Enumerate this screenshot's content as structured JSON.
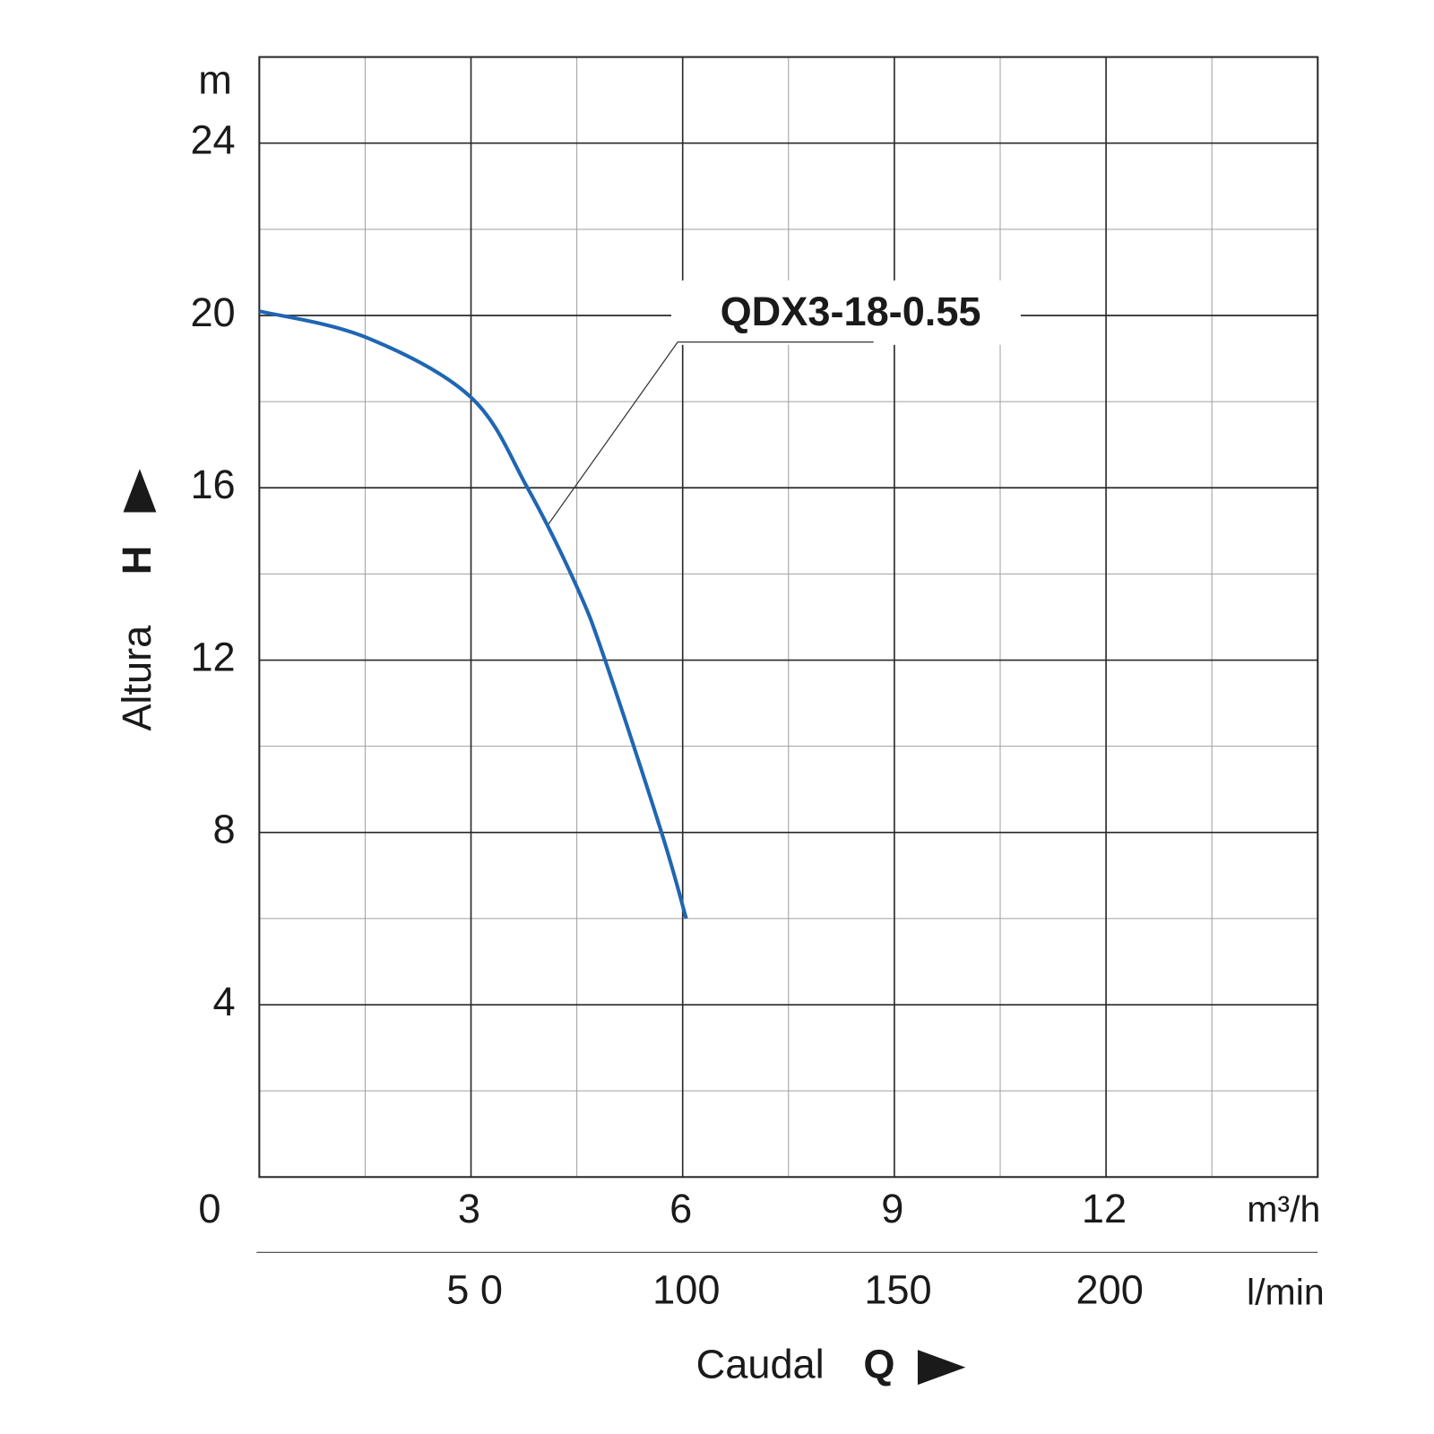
{
  "chart_data": {
    "type": "line",
    "y_unit": "m",
    "x_unit": "m³/h",
    "x2_unit": "l/min",
    "y_label": "Altura",
    "y_symbol": "H",
    "x_label": "Caudal",
    "x_symbol": "Q",
    "annotation": "QDX3-18-0.55",
    "xlim": [
      0,
      15
    ],
    "xticks": [
      0,
      3,
      6,
      9,
      12
    ],
    "xminor": [
      1.5,
      4.5,
      7.5,
      10.5,
      13.5
    ],
    "x2lim": [
      0,
      250
    ],
    "x2ticks": [
      {
        "value": 50,
        "label": "5 0"
      },
      100,
      150,
      200
    ],
    "ylim": [
      0,
      26
    ],
    "yticks": [
      4,
      8,
      12,
      16,
      20,
      24
    ],
    "yminor": [
      2,
      6,
      10,
      14,
      18,
      22
    ],
    "grid": true,
    "x": [
      0,
      1.5,
      3,
      3.8,
      4.5,
      4.9,
      5.7,
      6.05
    ],
    "series": [
      {
        "name": "QDX3-18-0.55",
        "color": "#1f66b3",
        "values": [
          20.1,
          19.5,
          18.1,
          16.0,
          13.7,
          12.0,
          8.0,
          6.0
        ]
      }
    ]
  }
}
